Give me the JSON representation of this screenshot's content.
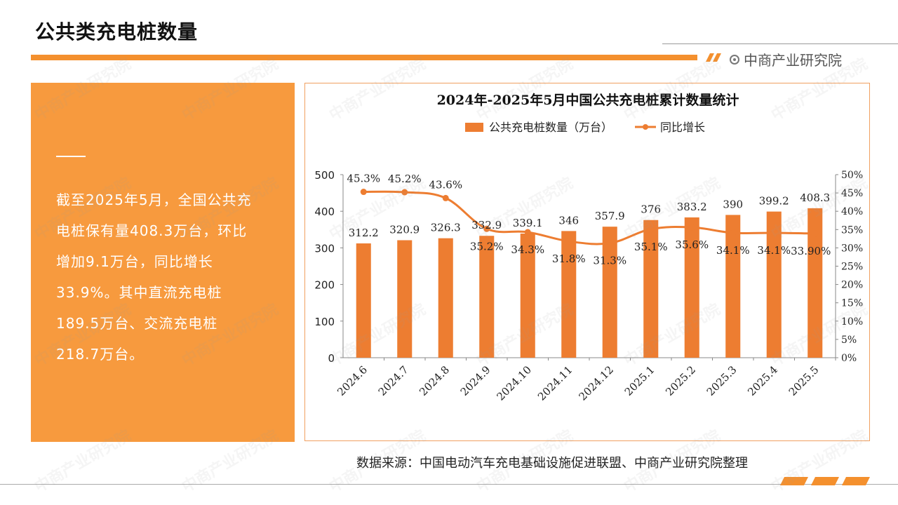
{
  "page": {
    "title": "公共类充电桩数量",
    "brand": "中商产业研究院",
    "summary": "截至2025年5月，全国公共充\n电桩保有量408.3万台，环比\n增加9.1万台，同比增长\n33.9%。其中直流充电桩\n189.5万台、交流充电桩\n218.7万台。",
    "source": "数据来源：中国电动汽车充电基础设施促进联盟、中商产业研究院整理",
    "watermark": "中商产业研究院"
  },
  "colors": {
    "accent": "#f4902e",
    "panel": "#f79a3e",
    "bar": "#ed7d31",
    "line": "#ed7d31"
  },
  "chart_data": {
    "type": "bar",
    "title": "2024年-2025年5月中国公共充电桩累计数量统计",
    "categories": [
      "2024.6",
      "2024.7",
      "2024.8",
      "2024.9",
      "2024.10",
      "2024.11",
      "2024.12",
      "2025.1",
      "2025.2",
      "2025.3",
      "2025.4",
      "2025.5"
    ],
    "series": [
      {
        "name": "公共充电桩数量（万台）",
        "type": "bar",
        "axis": "left",
        "values": [
          312.2,
          320.9,
          326.3,
          332.9,
          339.1,
          346,
          357.9,
          376,
          383.2,
          390,
          399.2,
          408.3
        ],
        "labels": [
          "312.2",
          "320.9",
          "326.3",
          "332.9",
          "339.1",
          "346",
          "357.9",
          "376",
          "383.2",
          "390",
          "399.2",
          "408.3"
        ]
      },
      {
        "name": "同比增长",
        "type": "line",
        "axis": "right",
        "values": [
          45.3,
          45.2,
          43.6,
          35.2,
          34.3,
          31.8,
          31.3,
          35.1,
          35.6,
          34.1,
          34.1,
          33.9
        ],
        "labels": [
          "45.3%",
          "45.2%",
          "43.6%",
          "35.2%",
          "34.3%",
          "31.8%",
          "31.3%",
          "35.1%",
          "35.6%",
          "34.1%",
          "34.1%",
          "33.90%"
        ]
      }
    ],
    "ylim_left": [
      0,
      500
    ],
    "yticks_left": [
      "0",
      "100",
      "200",
      "300",
      "400",
      "500"
    ],
    "ylim_right": [
      0,
      50
    ],
    "yticks_right": [
      "0%",
      "5%",
      "10%",
      "15%",
      "20%",
      "25%",
      "30%",
      "35%",
      "40%",
      "45%",
      "50%"
    ],
    "legend": "top",
    "grid": false
  }
}
